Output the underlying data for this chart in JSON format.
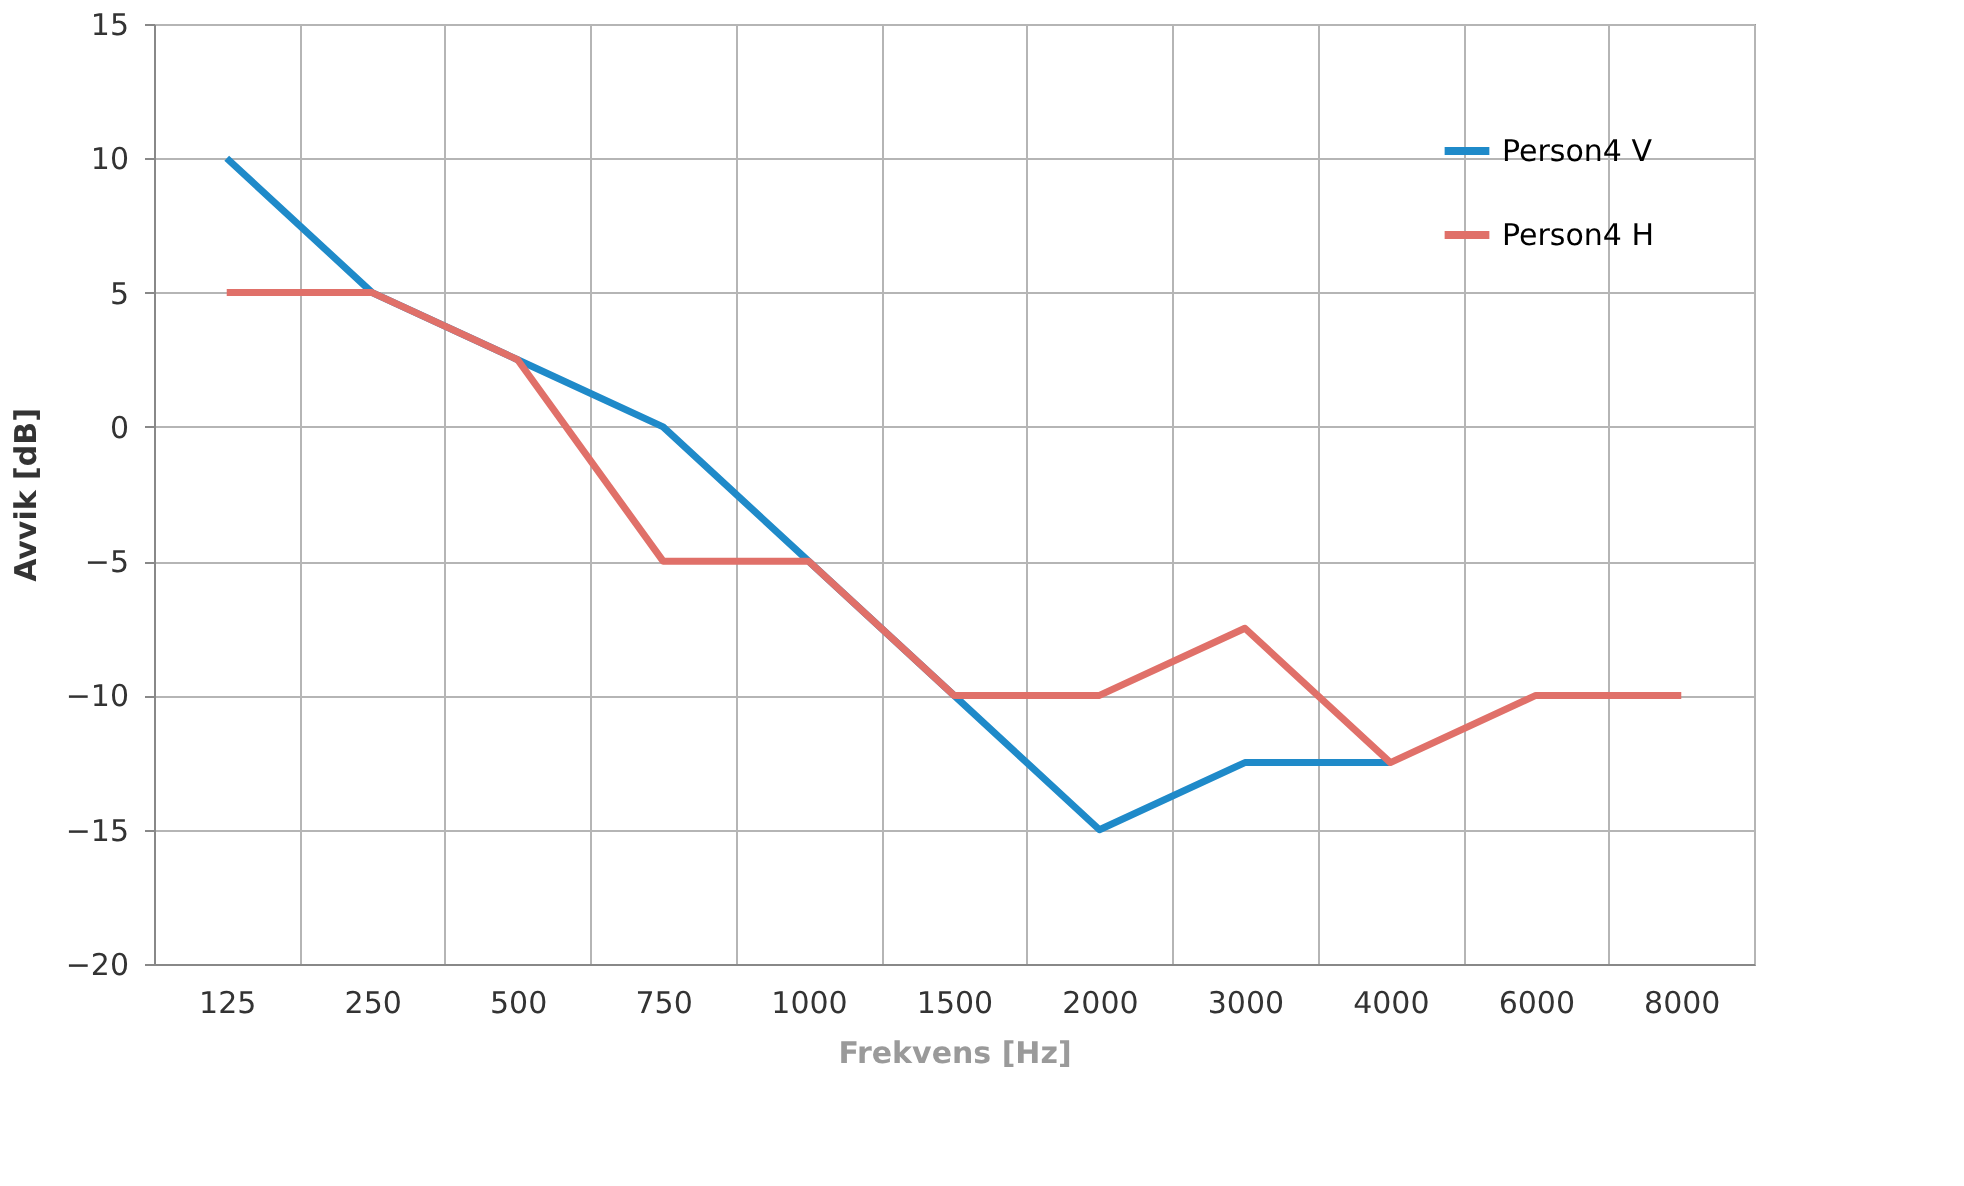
{
  "chart_data": {
    "type": "line",
    "xlabel": "Frekvens [Hz]",
    "ylabel": "Avvik [dB]",
    "categories": [
      "125",
      "250",
      "500",
      "750",
      "1000",
      "1500",
      "2000",
      "3000",
      "4000",
      "6000",
      "8000"
    ],
    "series": [
      {
        "name": "Person4 V",
        "color": "#1f8ac9",
        "values": [
          10,
          5,
          2.5,
          0,
          -5,
          -10,
          -15,
          -12.5,
          -12.5,
          null,
          null
        ]
      },
      {
        "name": "Person4 H",
        "color": "#e07069",
        "values": [
          5,
          5,
          2.5,
          -5,
          -5,
          -10,
          -10,
          -7.5,
          -12.5,
          -10,
          -10
        ]
      }
    ],
    "ylim": [
      -20,
      15
    ],
    "yticks": [
      -20,
      -15,
      -10,
      -5,
      0,
      5,
      10,
      15
    ],
    "grid": true,
    "legend": "top right",
    "marker": "none",
    "line_style": "solid"
  }
}
